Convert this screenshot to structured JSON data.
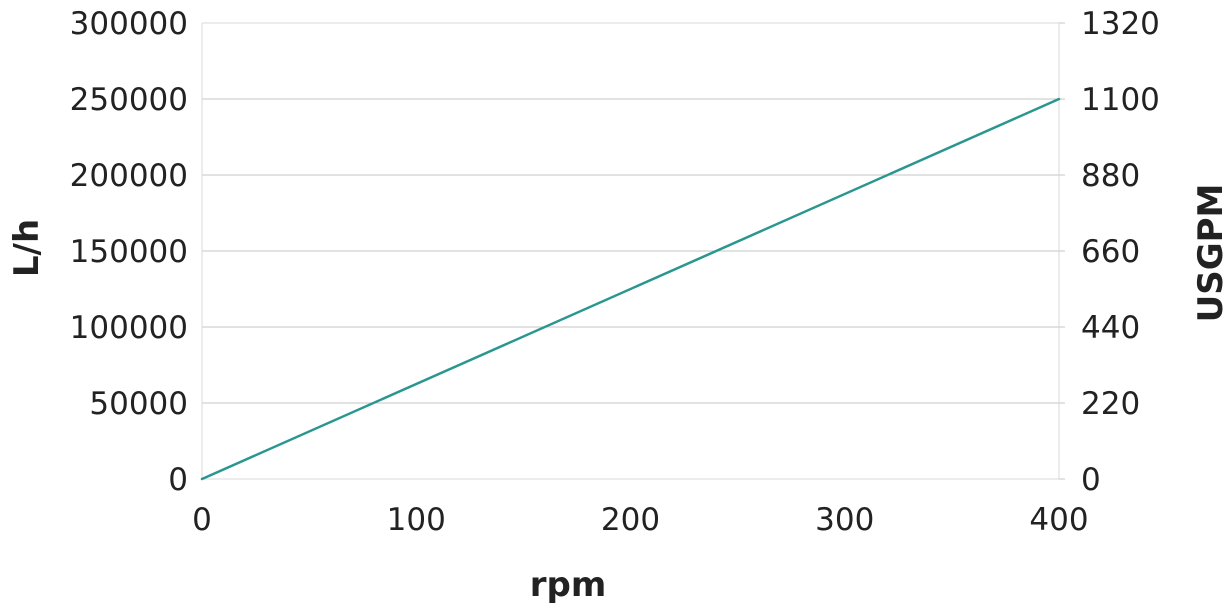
{
  "chart_data": {
    "type": "line",
    "title": "",
    "xlabel": "rpm",
    "ylabel": "L/h",
    "y2label": "USGPM",
    "xlim": [
      0,
      400
    ],
    "ylim": [
      0,
      300000
    ],
    "y2lim": [
      0,
      1320
    ],
    "x_ticks": [
      "0",
      "100",
      "200",
      "300",
      "400"
    ],
    "y_ticks": [
      "0",
      "50000",
      "100000",
      "150000",
      "200000",
      "250000",
      "300000"
    ],
    "y2_ticks": [
      "0",
      "220",
      "440",
      "660",
      "880",
      "1100",
      "1320"
    ],
    "grid": "horizontal",
    "legend": "none",
    "series": [
      {
        "x": [
          0,
          400
        ],
        "y": [
          0,
          250000
        ],
        "color": "#2a9690"
      }
    ]
  }
}
